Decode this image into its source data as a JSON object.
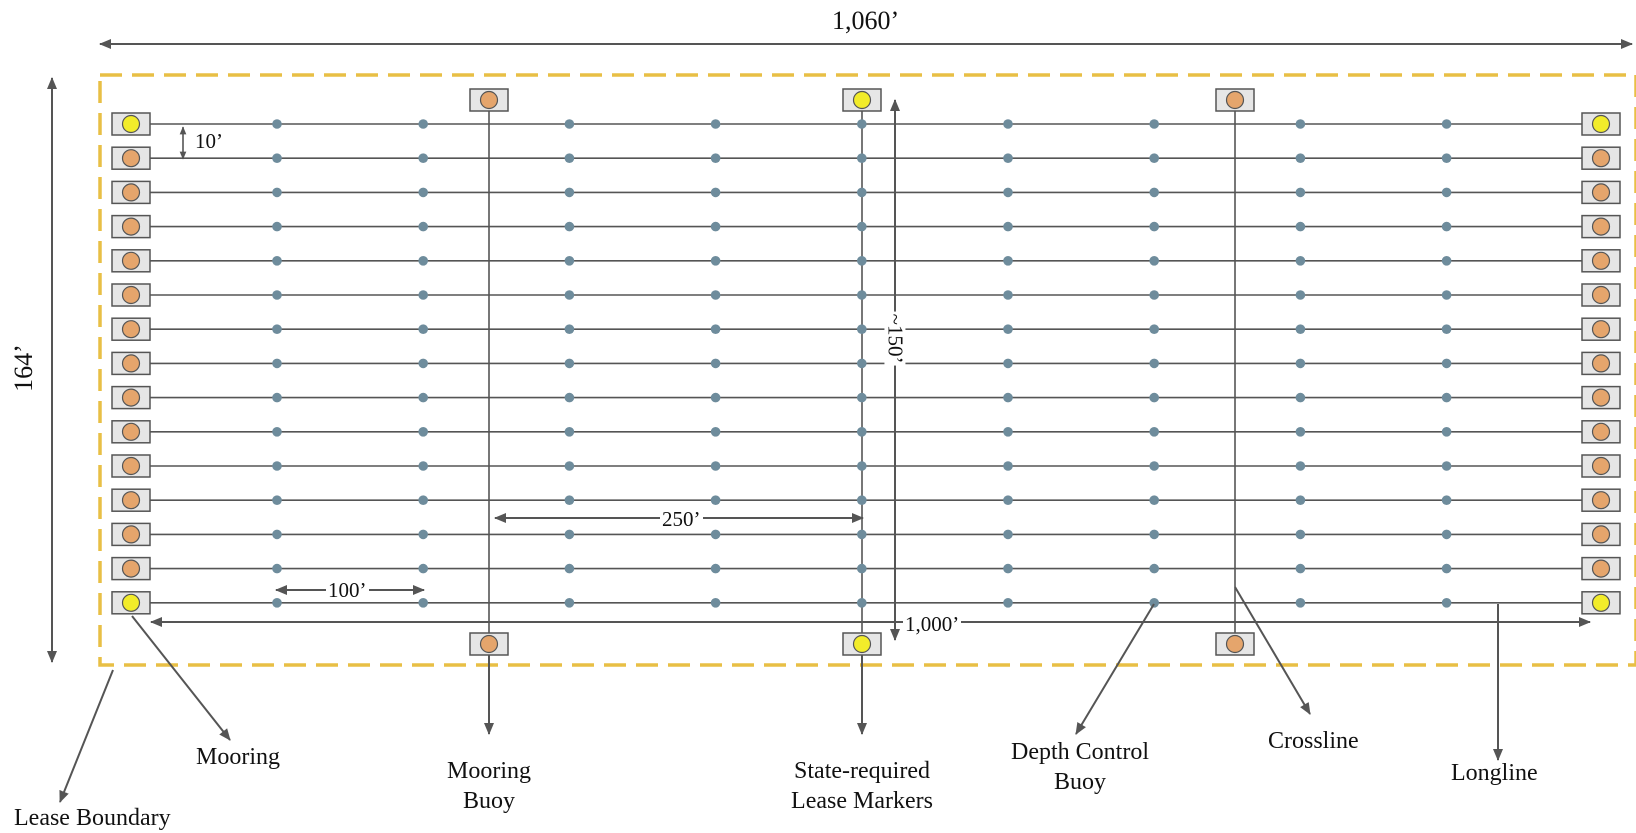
{
  "dimensions": {
    "total_width": "1,060’",
    "total_height": "164’",
    "line_spacing": "10’",
    "longline_length": "1,000’",
    "crossline_length": "150’",
    "crossline_length_prefix": "~",
    "crossline_spacing": "250’",
    "depth_buoy_spacing": "100’"
  },
  "labels": {
    "lease_boundary": "Lease Boundary",
    "mooring": "Mooring",
    "mooring_buoy": [
      "Mooring",
      "Buoy"
    ],
    "lease_markers": [
      "State-required",
      "Lease Markers"
    ],
    "depth_control_buoy": [
      "Depth Control",
      "Buoy"
    ],
    "crossline": "Crossline",
    "longline": "Longline"
  },
  "counts": {
    "longlines": 15,
    "depth_control_buoys_per_line": 10
  },
  "colors": {
    "boundary": "#e8bf45",
    "mooring_buoy": "#e5a56c",
    "lease_marker": "#f2ec2a",
    "depth_buoy": "#6e8c9c",
    "line": "#555555",
    "box_fill": "#e6e6e6",
    "box_stroke": "#555555"
  }
}
